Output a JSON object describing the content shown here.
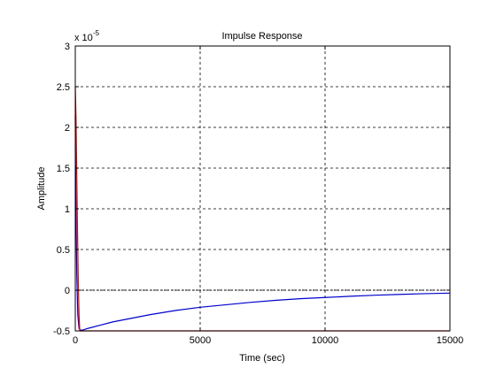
{
  "chart_data": {
    "type": "line",
    "title": "Impulse Response",
    "xlabel": "Time (sec)",
    "ylabel": "Amplitude",
    "exponent_label": "x 10",
    "exponent_value": "-5",
    "xlim": [
      0,
      15000
    ],
    "ylim": [
      -0.5,
      3
    ],
    "xticks": [
      0,
      5000,
      10000,
      15000
    ],
    "xtick_labels": [
      "0",
      "5000",
      "10000",
      "15000"
    ],
    "yticks": [
      -0.5,
      0,
      0.5,
      1,
      1.5,
      2,
      2.5,
      3
    ],
    "ytick_labels": [
      "-0.5",
      "0",
      "0.5",
      "1",
      "1.5",
      "2",
      "2.5",
      "3"
    ],
    "grid": true,
    "zero_line": 0,
    "series": [
      {
        "color": "#0000cc",
        "x": [
          0,
          10,
          30,
          60,
          100,
          150,
          200,
          300,
          500,
          1000,
          1500,
          2000,
          3000,
          4000,
          5000,
          6000,
          7000,
          8000,
          9000,
          10000,
          11000,
          12000,
          13000,
          14000,
          15000
        ],
        "y": [
          2.15,
          1.6,
          0.9,
          0.2,
          -0.3,
          -0.47,
          -0.49,
          -0.49,
          -0.47,
          -0.43,
          -0.39,
          -0.36,
          -0.3,
          -0.25,
          -0.21,
          -0.18,
          -0.15,
          -0.125,
          -0.105,
          -0.09,
          -0.075,
          -0.062,
          -0.052,
          -0.043,
          -0.036
        ]
      },
      {
        "color": "#dd0000",
        "x": [
          0,
          30,
          60,
          90,
          120,
          150,
          180,
          220,
          300,
          1000,
          5000,
          10000,
          15000
        ],
        "y": [
          2.5,
          2.1,
          1.4,
          0.7,
          0.1,
          -0.3,
          -0.5,
          -0.5,
          -0.5,
          -0.5,
          -0.5,
          -0.5,
          -0.5
        ]
      }
    ]
  }
}
